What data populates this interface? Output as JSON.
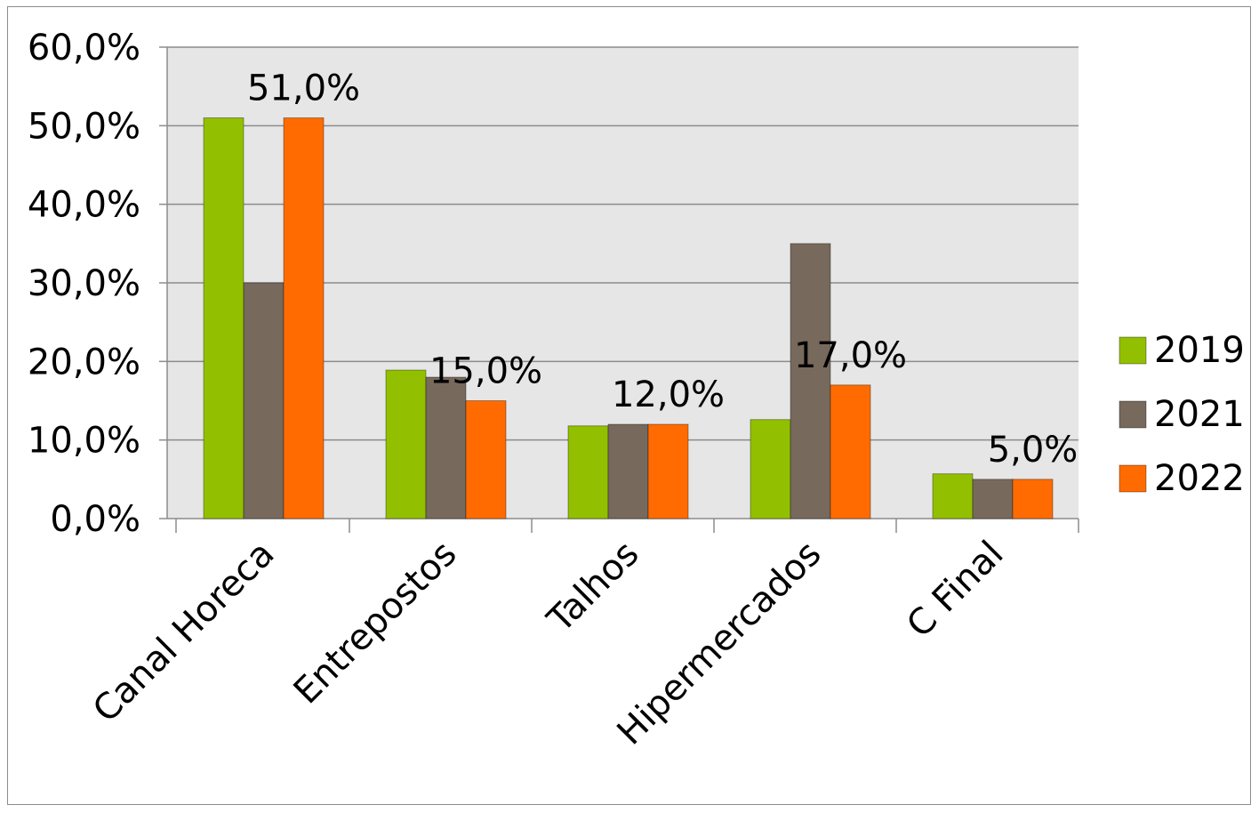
{
  "chart_data": {
    "type": "bar",
    "categories": [
      "Canal Horeca",
      "Entrepostos",
      "Talhos",
      "Hipermercados",
      "C Final"
    ],
    "series": [
      {
        "name": "2019",
        "color": "#92c000",
        "values": [
          51.0,
          18.9,
          11.8,
          12.6,
          5.7
        ]
      },
      {
        "name": "2021",
        "color": "#77695c",
        "values": [
          30.0,
          18.0,
          12.0,
          35.0,
          5.0
        ]
      },
      {
        "name": "2022",
        "color": "#ff6b00",
        "values": [
          51.0,
          15.0,
          12.0,
          17.0,
          5.0
        ]
      }
    ],
    "data_labels": {
      "series": "2022",
      "texts": [
        "51,0%",
        "15,0%",
        "12,0%",
        "17,0%",
        "5,0%"
      ]
    },
    "y_ticks": [
      "0,0%",
      "10,0%",
      "20,0%",
      "30,0%",
      "40,0%",
      "50,0%",
      "60,0%"
    ],
    "ylim": [
      0,
      60
    ],
    "title": "",
    "xlabel": "",
    "ylabel": "",
    "grid": true,
    "legend_position": "right",
    "plot_background": "#e6e6e6"
  }
}
